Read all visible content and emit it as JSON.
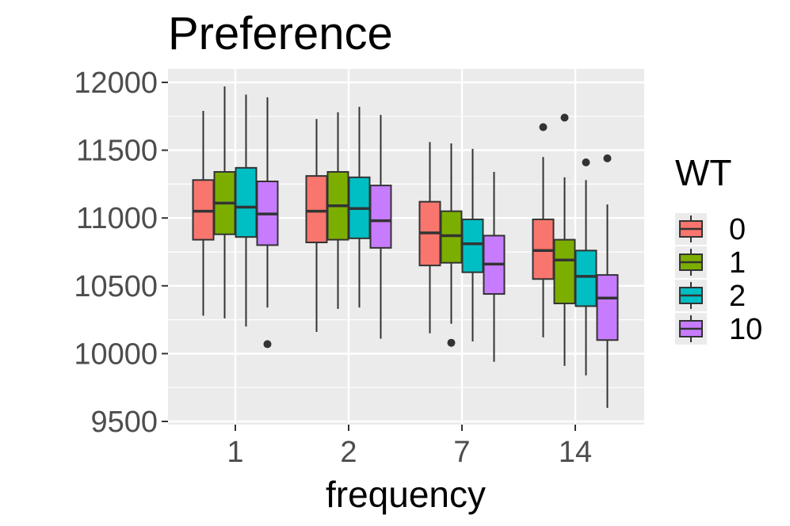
{
  "chart_data": {
    "type": "box",
    "title": "Preference",
    "xlabel": "frequency",
    "ylabel": "",
    "ylim": [
      9500,
      12000
    ],
    "y_ticks": [
      9500,
      10000,
      10500,
      11000,
      11500,
      12000
    ],
    "y_tick_labels": [
      "9500",
      "10000",
      "10500",
      "11000",
      "11500",
      "12000"
    ],
    "categories": [
      "1",
      "2",
      "7",
      "14"
    ],
    "legend": {
      "title": "WT",
      "position": "right",
      "entries": [
        {
          "label": "0",
          "color": "#F8766D"
        },
        {
          "label": "1",
          "color": "#7CAE00"
        },
        {
          "label": "2",
          "color": "#00BFC4"
        },
        {
          "label": "10",
          "color": "#C77CFF"
        }
      ]
    },
    "series": [
      {
        "name": "0",
        "color": "#F8766D",
        "boxes": [
          {
            "min": 10280,
            "q1": 10840,
            "median": 11050,
            "q3": 11280,
            "max": 11790,
            "outliers": []
          },
          {
            "min": 10160,
            "q1": 10820,
            "median": 11050,
            "q3": 11310,
            "max": 11730,
            "outliers": []
          },
          {
            "min": 10150,
            "q1": 10650,
            "median": 10890,
            "q3": 11120,
            "max": 11560,
            "outliers": []
          },
          {
            "min": 10120,
            "q1": 10550,
            "median": 10760,
            "q3": 10990,
            "max": 11450,
            "outliers": [
              11670
            ]
          }
        ]
      },
      {
        "name": "1",
        "color": "#7CAE00",
        "boxes": [
          {
            "min": 10260,
            "q1": 10880,
            "median": 11110,
            "q3": 11340,
            "max": 11970,
            "outliers": []
          },
          {
            "min": 10330,
            "q1": 10840,
            "median": 11090,
            "q3": 11340,
            "max": 11780,
            "outliers": []
          },
          {
            "min": 10220,
            "q1": 10670,
            "median": 10870,
            "q3": 11050,
            "max": 11550,
            "outliers": [
              10080
            ]
          },
          {
            "min": 9910,
            "q1": 10370,
            "median": 10690,
            "q3": 10840,
            "max": 11300,
            "outliers": [
              11740
            ]
          }
        ]
      },
      {
        "name": "2",
        "color": "#00BFC4",
        "boxes": [
          {
            "min": 10200,
            "q1": 10860,
            "median": 11080,
            "q3": 11370,
            "max": 11910,
            "outliers": []
          },
          {
            "min": 10340,
            "q1": 10850,
            "median": 11070,
            "q3": 11300,
            "max": 11820,
            "outliers": []
          },
          {
            "min": 10090,
            "q1": 10600,
            "median": 10810,
            "q3": 10990,
            "max": 11510,
            "outliers": []
          },
          {
            "min": 9840,
            "q1": 10350,
            "median": 10570,
            "q3": 10760,
            "max": 11280,
            "outliers": [
              11410
            ]
          }
        ]
      },
      {
        "name": "10",
        "color": "#C77CFF",
        "boxes": [
          {
            "min": 10340,
            "q1": 10800,
            "median": 11030,
            "q3": 11270,
            "max": 11890,
            "outliers": [
              10070
            ]
          },
          {
            "min": 10110,
            "q1": 10780,
            "median": 10980,
            "q3": 11240,
            "max": 11760,
            "outliers": []
          },
          {
            "min": 9940,
            "q1": 10440,
            "median": 10660,
            "q3": 10870,
            "max": 11340,
            "outliers": []
          },
          {
            "min": 9600,
            "q1": 10100,
            "median": 10410,
            "q3": 10580,
            "max": 11100,
            "outliers": [
              11440
            ]
          }
        ]
      }
    ]
  }
}
